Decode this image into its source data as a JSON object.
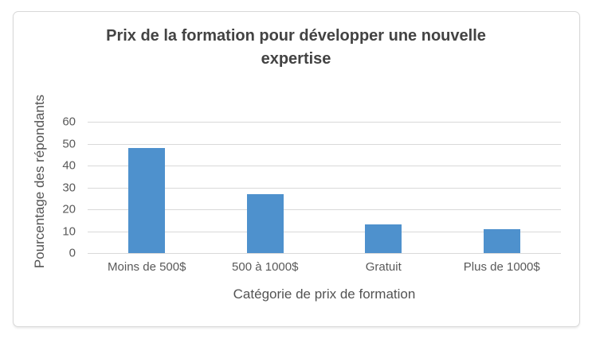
{
  "chart_data": {
    "type": "bar",
    "title": "Prix de la formation pour développer une nouvelle expertise",
    "title_lines": [
      "Prix de la formation pour développer une nouvelle",
      "expertise"
    ],
    "categories": [
      "Moins de 500$",
      "500 à 1000$",
      "Gratuit",
      "Plus de 1000$"
    ],
    "values": [
      48,
      27,
      13,
      11
    ],
    "xlabel": "Catégorie de prix de formation",
    "ylabel": "Pourcentage des répondants",
    "ylim": [
      0,
      60
    ],
    "yticks": [
      60,
      50,
      40,
      30,
      20,
      10,
      0
    ],
    "grid": "horizontal",
    "legend": "none",
    "colors": {
      "bar": "#4E91CD",
      "gridline": "#D9D9D9",
      "axis_line": "#D9D9D9",
      "title_text": "#434343",
      "label_text": "#595959",
      "frame_border": "#D8D8D8",
      "background": "#FFFFFF"
    }
  }
}
